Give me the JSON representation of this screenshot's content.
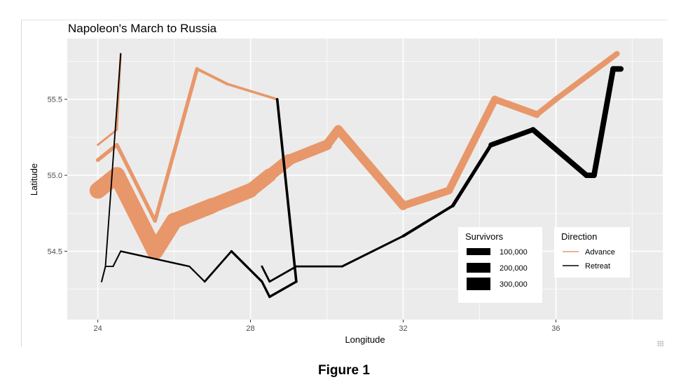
{
  "caption": "Figure 1",
  "chart_data": {
    "type": "line",
    "title": "Napoleon's March to Russia",
    "xlabel": "Longitude",
    "ylabel": "Latitude",
    "xlim": [
      23.2,
      38.8
    ],
    "ylim": [
      54.05,
      55.9
    ],
    "xticks": [
      24,
      28,
      32,
      36
    ],
    "yticks": [
      54.5,
      55.0,
      55.5
    ],
    "ytick_labels": [
      "54.5",
      "55.0",
      "55.5"
    ],
    "grid": true,
    "legend_placement": "bottom-right",
    "direction_legend": {
      "title": "Direction",
      "entries": [
        {
          "label": "Advance",
          "color": "#E8976A"
        },
        {
          "label": "Retreat",
          "color": "#000000"
        }
      ]
    },
    "survivors_legend": {
      "title": "Survivors",
      "entries": [
        {
          "label": "100,000",
          "value": 100000
        },
        {
          "label": "200,000",
          "value": 200000
        },
        {
          "label": "300,000",
          "value": 300000
        }
      ]
    },
    "colors": {
      "advance": "#E8976A",
      "retreat": "#000000",
      "panel": "#EBEBEB"
    },
    "series": [
      {
        "direction": "Advance",
        "group": 1,
        "points": [
          {
            "lon": 24.0,
            "lat": 54.9,
            "surv": 340000
          },
          {
            "lon": 24.5,
            "lat": 55.0,
            "surv": 340000
          },
          {
            "lon": 25.5,
            "lat": 54.5,
            "surv": 340000
          },
          {
            "lon": 26.0,
            "lat": 54.7,
            "surv": 320000
          },
          {
            "lon": 27.0,
            "lat": 54.8,
            "surv": 300000
          },
          {
            "lon": 28.0,
            "lat": 54.9,
            "surv": 280000
          },
          {
            "lon": 28.5,
            "lat": 55.0,
            "surv": 240000
          },
          {
            "lon": 29.0,
            "lat": 55.1,
            "surv": 210000
          },
          {
            "lon": 30.0,
            "lat": 55.2,
            "surv": 180000
          },
          {
            "lon": 30.3,
            "lat": 55.3,
            "surv": 175000
          },
          {
            "lon": 32.0,
            "lat": 54.8,
            "surv": 145000
          },
          {
            "lon": 33.2,
            "lat": 54.9,
            "surv": 140000
          },
          {
            "lon": 34.4,
            "lat": 55.5,
            "surv": 127100
          },
          {
            "lon": 35.5,
            "lat": 55.4,
            "surv": 100000
          },
          {
            "lon": 36.0,
            "lat": 55.5,
            "surv": 100000
          },
          {
            "lon": 37.6,
            "lat": 55.8,
            "surv": 100000
          }
        ]
      },
      {
        "direction": "Retreat",
        "group": 1,
        "points": [
          {
            "lon": 37.7,
            "lat": 55.7,
            "surv": 100000
          },
          {
            "lon": 37.5,
            "lat": 55.7,
            "surv": 98000
          },
          {
            "lon": 37.0,
            "lat": 55.0,
            "surv": 97000
          },
          {
            "lon": 36.8,
            "lat": 55.0,
            "surv": 96000
          },
          {
            "lon": 35.4,
            "lat": 55.3,
            "surv": 87000
          },
          {
            "lon": 34.3,
            "lat": 55.2,
            "surv": 55000
          },
          {
            "lon": 33.3,
            "lat": 54.8,
            "surv": 37000
          },
          {
            "lon": 32.0,
            "lat": 54.6,
            "surv": 24000
          },
          {
            "lon": 30.4,
            "lat": 54.4,
            "surv": 20000
          },
          {
            "lon": 29.2,
            "lat": 54.4,
            "surv": 20000
          },
          {
            "lon": 28.5,
            "lat": 54.3,
            "surv": 20000
          },
          {
            "lon": 28.3,
            "lat": 54.4,
            "surv": 20000
          }
        ]
      },
      {
        "direction": "Advance",
        "group": 2,
        "points": [
          {
            "lon": 24.0,
            "lat": 55.1,
            "surv": 60000
          },
          {
            "lon": 24.5,
            "lat": 55.2,
            "surv": 60000
          },
          {
            "lon": 25.5,
            "lat": 54.7,
            "surv": 60000
          },
          {
            "lon": 26.6,
            "lat": 55.7,
            "surv": 40000
          },
          {
            "lon": 27.4,
            "lat": 55.6,
            "surv": 33000
          },
          {
            "lon": 28.7,
            "lat": 55.5,
            "surv": 33000
          }
        ]
      },
      {
        "direction": "Retreat",
        "group": 2,
        "points": [
          {
            "lon": 28.7,
            "lat": 55.5,
            "surv": 33000
          },
          {
            "lon": 29.2,
            "lat": 54.3,
            "surv": 30000
          },
          {
            "lon": 28.5,
            "lat": 54.2,
            "surv": 28000
          },
          {
            "lon": 28.3,
            "lat": 54.3,
            "surv": 28000
          },
          {
            "lon": 27.5,
            "lat": 54.5,
            "surv": 20000
          },
          {
            "lon": 26.8,
            "lat": 54.3,
            "surv": 12000
          },
          {
            "lon": 26.4,
            "lat": 54.4,
            "surv": 14000
          },
          {
            "lon": 24.6,
            "lat": 54.5,
            "surv": 8000
          },
          {
            "lon": 24.4,
            "lat": 54.4,
            "surv": 4000
          },
          {
            "lon": 24.2,
            "lat": 54.4,
            "surv": 4000
          },
          {
            "lon": 24.1,
            "lat": 54.3,
            "surv": 4000
          }
        ]
      },
      {
        "direction": "Advance",
        "group": 3,
        "points": [
          {
            "lon": 24.0,
            "lat": 55.2,
            "surv": 22000
          },
          {
            "lon": 24.5,
            "lat": 55.3,
            "surv": 22000
          },
          {
            "lon": 24.6,
            "lat": 55.8,
            "surv": 6000
          }
        ]
      },
      {
        "direction": "Retreat",
        "group": 3,
        "points": [
          {
            "lon": 24.6,
            "lat": 55.8,
            "surv": 6000
          },
          {
            "lon": 24.2,
            "lat": 54.4,
            "surv": 6000
          },
          {
            "lon": 24.1,
            "lat": 54.3,
            "surv": 6000
          }
        ]
      }
    ]
  }
}
